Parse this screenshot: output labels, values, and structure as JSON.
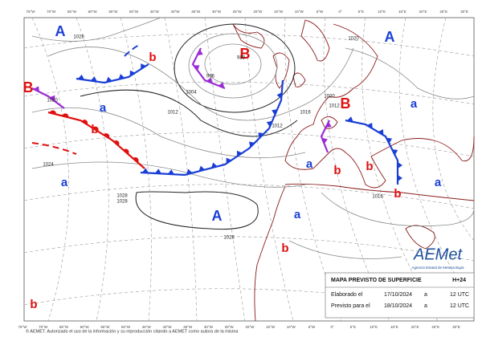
{
  "map": {
    "longitude_labels": [
      "75°W",
      "70°W",
      "65°W",
      "60°W",
      "55°W",
      "50°W",
      "45°W",
      "40°W",
      "35°W",
      "30°W",
      "25°W",
      "20°W",
      "15°W",
      "10°W",
      "5°W",
      "0°",
      "5°E",
      "10°E",
      "15°E",
      "20°E",
      "25°E",
      "30°E"
    ],
    "centers": [
      {
        "label": "A"
      },
      {
        "label": "b"
      },
      {
        "label": "B"
      },
      {
        "label": "A"
      },
      {
        "label": "B"
      },
      {
        "label": "a"
      },
      {
        "label": "b"
      },
      {
        "label": "B"
      },
      {
        "label": "a"
      },
      {
        "label": "a"
      },
      {
        "label": "a"
      },
      {
        "label": "b"
      },
      {
        "label": "b"
      },
      {
        "label": "a"
      },
      {
        "label": "b"
      },
      {
        "label": "A"
      },
      {
        "label": "a"
      },
      {
        "label": "b"
      },
      {
        "label": "b"
      }
    ],
    "isobar_labels": [
      "1028",
      "1020",
      "1012",
      "1004",
      "996",
      "988",
      "1024",
      "1028",
      "1028",
      "1028",
      "1012",
      "1016",
      "1020",
      "1012",
      "1016",
      "1020"
    ]
  },
  "logo": {
    "name": "AEMet",
    "subtitle": "Agencia Estatal de Meteorología"
  },
  "info": {
    "title": "MAPA PREVISTO DE SUPERFICIE",
    "horizon": "H+24",
    "rows": [
      [
        "Elaborado el",
        "17/10/2024",
        "a",
        "12 UTC"
      ],
      [
        "Previsto para el",
        "18/10/2024",
        "a",
        "12 UTC"
      ]
    ]
  },
  "footer": {
    "copyright": "© AEMET. Autorizado el uso de la información y su reproducción citando a AEMET como autora de la misma"
  }
}
